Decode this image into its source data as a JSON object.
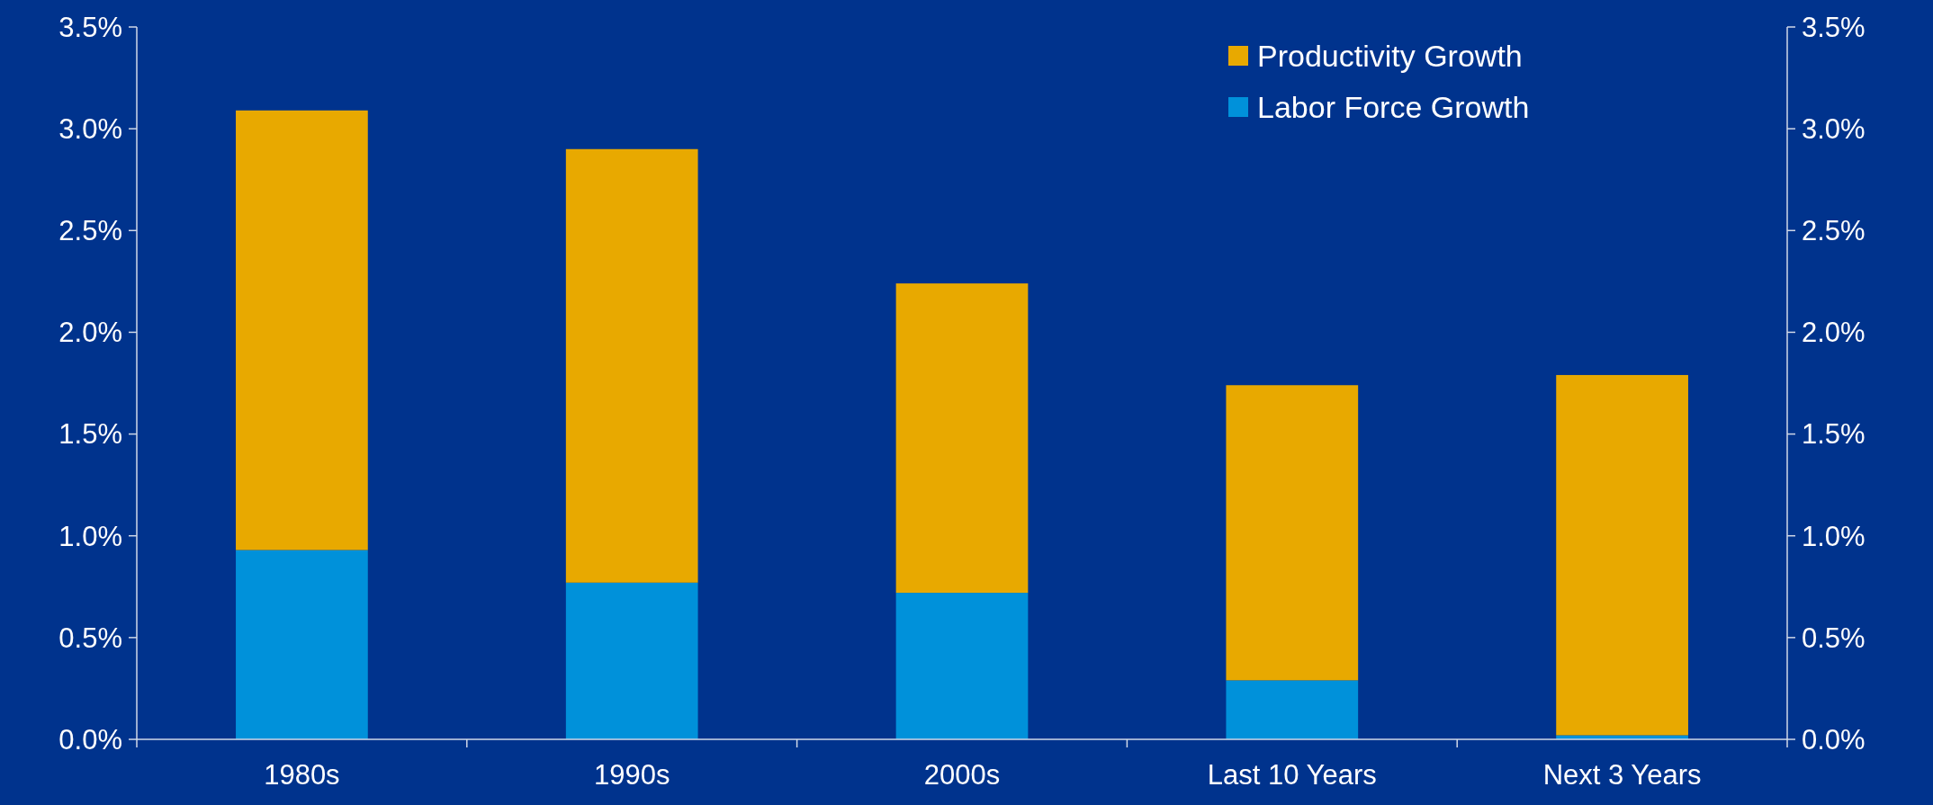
{
  "chart_data": {
    "type": "bar",
    "stacked": true,
    "categories": [
      "1980s",
      "1990s",
      "2000s",
      "Last 10 Years",
      "Next 3 Years"
    ],
    "series": [
      {
        "name": "Labor Force Growth",
        "color": "#0091da",
        "values": [
          0.93,
          0.77,
          0.72,
          0.29,
          0.02
        ]
      },
      {
        "name": "Productivity Growth",
        "color": "#e8a900",
        "values": [
          2.16,
          2.13,
          1.52,
          1.45,
          1.77
        ]
      }
    ],
    "ylim": [
      0,
      3.5
    ],
    "yticks": [
      {
        "value": 0,
        "label": "0.0%"
      },
      {
        "value": 0.5,
        "label": "0.5%"
      },
      {
        "value": 1,
        "label": "1.0%"
      },
      {
        "value": 1.5,
        "label": "1.5%"
      },
      {
        "value": 2,
        "label": "2.0%"
      },
      {
        "value": 2.5,
        "label": "2.5%"
      },
      {
        "value": 3,
        "label": "3.0%"
      },
      {
        "value": 3.5,
        "label": "3.5%"
      }
    ],
    "y2lim": [
      0,
      3.5
    ],
    "y2ticks": [
      {
        "value": 0,
        "label": "0.0%"
      },
      {
        "value": 0.5,
        "label": "0.5%"
      },
      {
        "value": 1,
        "label": "1.0%"
      },
      {
        "value": 1.5,
        "label": "1.5%"
      },
      {
        "value": 2,
        "label": "2.0%"
      },
      {
        "value": 2.5,
        "label": "2.5%"
      },
      {
        "value": 3,
        "label": "3.0%"
      },
      {
        "value": 3.5,
        "label": "3.5%"
      }
    ],
    "grid": false,
    "legend": "top right"
  }
}
